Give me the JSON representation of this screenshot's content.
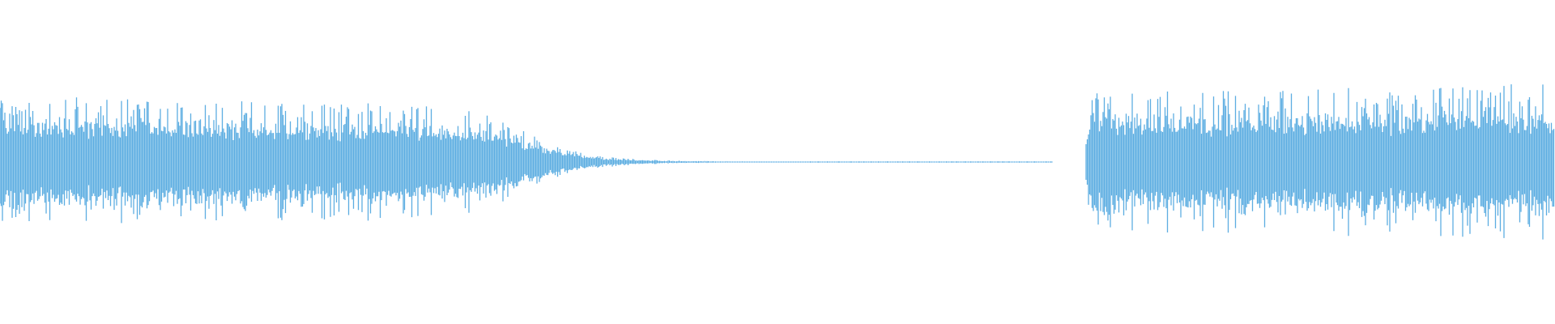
{
  "chart_data": {
    "type": "waveform",
    "title": "",
    "xlabel": "",
    "ylabel": "",
    "ylim": [
      -1,
      1
    ],
    "grid": false,
    "color": "#5dade2",
    "amplitude_envelope": [
      0.4,
      0.4,
      0.38,
      0.37,
      0.36,
      0.34,
      0.3,
      0.22,
      0.12,
      0.06,
      0.025,
      0.01,
      0.004,
      0.002,
      0.002,
      0.0,
      0.47,
      0.44,
      0.44,
      0.45,
      0.46,
      0.47,
      0.48,
      0.48
    ]
  }
}
